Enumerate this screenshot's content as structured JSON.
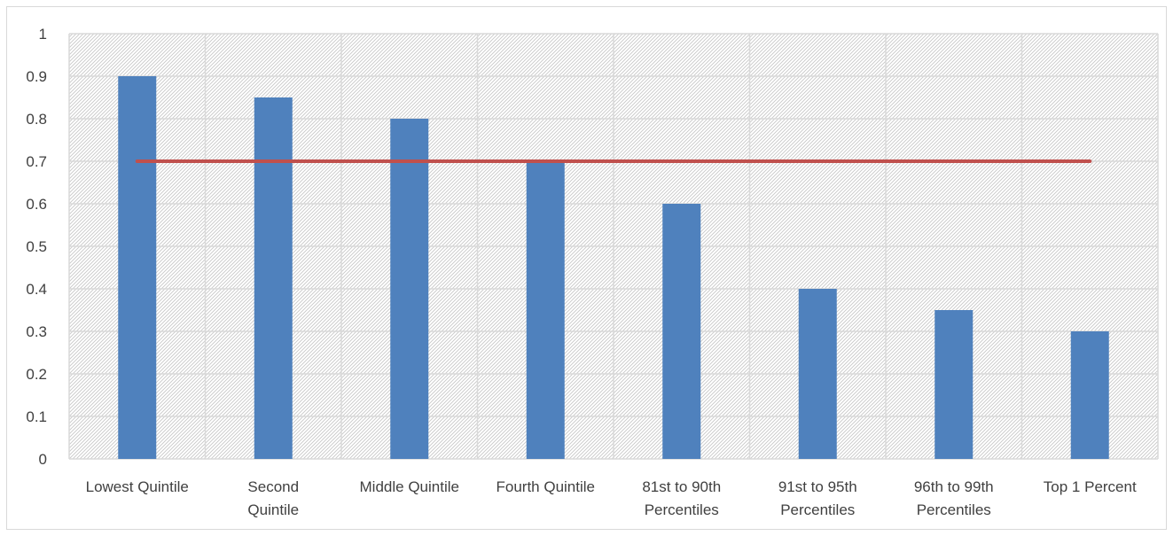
{
  "chart_data": {
    "type": "bar",
    "categories": [
      [
        "Lowest Quintile"
      ],
      [
        "Second",
        "Quintile"
      ],
      [
        "Middle Quintile"
      ],
      [
        "Fourth Quintile"
      ],
      [
        "81st to 90th",
        "Percentiles"
      ],
      [
        "91st to 95th",
        "Percentiles"
      ],
      [
        "96th to 99th",
        "Percentiles"
      ],
      [
        "Top 1 Percent"
      ]
    ],
    "series": [
      {
        "type": "bar",
        "values": [
          0.9,
          0.85,
          0.8,
          0.7,
          0.6,
          0.4,
          0.35,
          0.3
        ],
        "color": "#4f81bd"
      },
      {
        "type": "line",
        "values": [
          0.7,
          0.7,
          0.7,
          0.7,
          0.7,
          0.7,
          0.7,
          0.7
        ],
        "color": "#c0504d"
      }
    ],
    "title": "",
    "xlabel": "",
    "ylabel": "",
    "ylim": [
      0,
      1
    ],
    "yticks": [
      "0",
      "0.1",
      "0.2",
      "0.3",
      "0.4",
      "0.5",
      "0.6",
      "0.7",
      "0.8",
      "0.9",
      "1"
    ],
    "grid": true,
    "legend": "none",
    "plot_background": "hatched"
  }
}
